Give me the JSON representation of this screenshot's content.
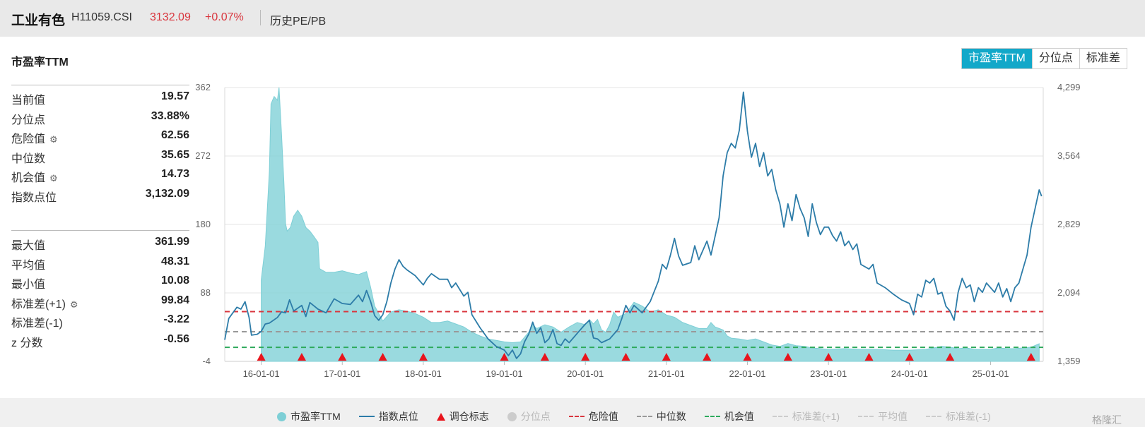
{
  "header": {
    "name": "工业有色",
    "code": "H11059.CSI",
    "price": "3132.09",
    "change": "+0.07%",
    "history_link": "历史PE/PB"
  },
  "panel_title": "市盈率TTM",
  "tabs": [
    {
      "label": "市盈率TTM",
      "active": true
    },
    {
      "label": "分位点",
      "active": false
    },
    {
      "label": "标准差",
      "active": false
    }
  ],
  "stats_top": [
    {
      "label": "当前值",
      "value": "19.57",
      "gear": false
    },
    {
      "label": "分位点",
      "value": "33.88%",
      "gear": false
    },
    {
      "label": "危险值",
      "value": "62.56",
      "gear": true
    },
    {
      "label": "中位数",
      "value": "35.65",
      "gear": false
    },
    {
      "label": "机会值",
      "value": "14.73",
      "gear": true
    },
    {
      "label": "指数点位",
      "value": "3,132.09",
      "gear": false
    }
  ],
  "stats_bottom": [
    {
      "label": "最大值",
      "value": "361.99",
      "gear": false
    },
    {
      "label": "平均值",
      "value": "48.31",
      "gear": false
    },
    {
      "label": "最小值",
      "value": "10.08",
      "gear": false
    },
    {
      "label": "标准差(+1)",
      "value": "99.84",
      "gear": true
    },
    {
      "label": "标准差(-1)",
      "value": "-3.22",
      "gear": false
    },
    {
      "label": "z 分数",
      "value": "-0.56",
      "gear": false
    }
  ],
  "gear_icon": "⚙",
  "colors": {
    "pe_fill": "#7ecfd6",
    "index_line": "#2d7ca8",
    "danger": "#d9363e",
    "median": "#999999",
    "opportunity": "#2eaa5c",
    "marker": "#e8141c",
    "tab_active": "#12a8c9"
  },
  "chart_data": {
    "type": "area",
    "x_ticks": [
      "16-01-01",
      "17-01-01",
      "18-01-01",
      "19-01-01",
      "20-01-01",
      "21-01-01",
      "22-01-01",
      "23-01-01",
      "24-01-01",
      "25-01-01"
    ],
    "x_range": [
      2015.55,
      2025.65
    ],
    "y_left": {
      "ticks": [
        "362",
        "272",
        "180",
        "88",
        "-4"
      ],
      "range": [
        -4,
        362
      ]
    },
    "y_right": {
      "ticks": [
        "4,299",
        "3,564",
        "2,829",
        "2,094",
        "1,359"
      ],
      "range": [
        1359,
        4299
      ]
    },
    "pe_series": {
      "name": "市盈率TTM",
      "points": [
        [
          2016.0,
          -4
        ],
        [
          2016.0,
          105
        ],
        [
          2016.05,
          150
        ],
        [
          2016.1,
          250
        ],
        [
          2016.12,
          340
        ],
        [
          2016.16,
          350
        ],
        [
          2016.2,
          345
        ],
        [
          2016.22,
          362
        ],
        [
          2016.25,
          300
        ],
        [
          2016.28,
          235
        ],
        [
          2016.3,
          180
        ],
        [
          2016.32,
          170
        ],
        [
          2016.36,
          175
        ],
        [
          2016.4,
          190
        ],
        [
          2016.45,
          198
        ],
        [
          2016.5,
          190
        ],
        [
          2016.55,
          175
        ],
        [
          2016.6,
          170
        ],
        [
          2016.65,
          163
        ],
        [
          2016.7,
          155
        ],
        [
          2016.72,
          120
        ],
        [
          2016.75,
          118
        ],
        [
          2016.8,
          115
        ],
        [
          2016.9,
          115
        ],
        [
          2017.0,
          117
        ],
        [
          2017.1,
          114
        ],
        [
          2017.2,
          112
        ],
        [
          2017.3,
          116
        ],
        [
          2017.35,
          95
        ],
        [
          2017.4,
          70
        ],
        [
          2017.5,
          50
        ],
        [
          2017.6,
          62
        ],
        [
          2017.7,
          65
        ],
        [
          2017.8,
          63
        ],
        [
          2017.9,
          60
        ],
        [
          2018.0,
          55
        ],
        [
          2018.1,
          48
        ],
        [
          2018.2,
          48
        ],
        [
          2018.3,
          50
        ],
        [
          2018.4,
          46
        ],
        [
          2018.5,
          42
        ],
        [
          2018.6,
          35
        ],
        [
          2018.7,
          30
        ],
        [
          2018.8,
          26
        ],
        [
          2018.9,
          24
        ],
        [
          2019.0,
          22
        ],
        [
          2019.1,
          21
        ],
        [
          2019.2,
          22
        ],
        [
          2019.3,
          35
        ],
        [
          2019.35,
          45
        ],
        [
          2019.4,
          40
        ],
        [
          2019.5,
          45
        ],
        [
          2019.6,
          42
        ],
        [
          2019.7,
          35
        ],
        [
          2019.8,
          42
        ],
        [
          2019.9,
          48
        ],
        [
          2020.0,
          45
        ],
        [
          2020.05,
          52
        ],
        [
          2020.1,
          46
        ],
        [
          2020.15,
          52
        ],
        [
          2020.2,
          38
        ],
        [
          2020.25,
          35
        ],
        [
          2020.3,
          45
        ],
        [
          2020.35,
          62
        ],
        [
          2020.4,
          55
        ],
        [
          2020.5,
          60
        ],
        [
          2020.6,
          75
        ],
        [
          2020.7,
          70
        ],
        [
          2020.8,
          62
        ],
        [
          2020.9,
          65
        ],
        [
          2021.0,
          58
        ],
        [
          2021.1,
          55
        ],
        [
          2021.2,
          48
        ],
        [
          2021.3,
          44
        ],
        [
          2021.4,
          40
        ],
        [
          2021.5,
          40
        ],
        [
          2021.55,
          48
        ],
        [
          2021.6,
          42
        ],
        [
          2021.7,
          38
        ],
        [
          2021.75,
          30
        ],
        [
          2021.8,
          27
        ],
        [
          2021.9,
          26
        ],
        [
          2022.0,
          24
        ],
        [
          2022.1,
          26
        ],
        [
          2022.2,
          22
        ],
        [
          2022.3,
          18
        ],
        [
          2022.4,
          16
        ],
        [
          2022.5,
          20
        ],
        [
          2022.6,
          17
        ],
        [
          2022.7,
          16
        ],
        [
          2022.8,
          14
        ],
        [
          2022.9,
          13
        ],
        [
          2023.0,
          12
        ],
        [
          2023.2,
          13
        ],
        [
          2023.4,
          12
        ],
        [
          2023.6,
          12
        ],
        [
          2023.8,
          11
        ],
        [
          2024.0,
          11
        ],
        [
          2024.2,
          12
        ],
        [
          2024.4,
          16
        ],
        [
          2024.5,
          15
        ],
        [
          2024.6,
          13
        ],
        [
          2024.7,
          14
        ],
        [
          2024.8,
          12
        ],
        [
          2024.9,
          12
        ],
        [
          2025.0,
          12
        ],
        [
          2025.1,
          14
        ],
        [
          2025.2,
          13
        ],
        [
          2025.3,
          13
        ],
        [
          2025.4,
          14
        ],
        [
          2025.5,
          15
        ],
        [
          2025.6,
          19.57
        ]
      ]
    },
    "index_series": {
      "name": "指数点位",
      "points": [
        [
          2015.55,
          1590
        ],
        [
          2015.6,
          1820
        ],
        [
          2015.7,
          1940
        ],
        [
          2015.75,
          1920
        ],
        [
          2015.8,
          2000
        ],
        [
          2015.85,
          1830
        ],
        [
          2015.88,
          1640
        ],
        [
          2015.95,
          1650
        ],
        [
          2016.0,
          1680
        ],
        [
          2016.05,
          1760
        ],
        [
          2016.1,
          1770
        ],
        [
          2016.2,
          1830
        ],
        [
          2016.25,
          1890
        ],
        [
          2016.3,
          1880
        ],
        [
          2016.35,
          2020
        ],
        [
          2016.4,
          1900
        ],
        [
          2016.5,
          1960
        ],
        [
          2016.55,
          1840
        ],
        [
          2016.6,
          1990
        ],
        [
          2016.7,
          1920
        ],
        [
          2016.8,
          1880
        ],
        [
          2016.9,
          2030
        ],
        [
          2017.0,
          1980
        ],
        [
          2017.1,
          1970
        ],
        [
          2017.2,
          2070
        ],
        [
          2017.25,
          2000
        ],
        [
          2017.3,
          2120
        ],
        [
          2017.35,
          2000
        ],
        [
          2017.4,
          1850
        ],
        [
          2017.45,
          1800
        ],
        [
          2017.5,
          1860
        ],
        [
          2017.55,
          2000
        ],
        [
          2017.6,
          2200
        ],
        [
          2017.65,
          2350
        ],
        [
          2017.7,
          2450
        ],
        [
          2017.75,
          2380
        ],
        [
          2017.8,
          2340
        ],
        [
          2017.9,
          2280
        ],
        [
          2018.0,
          2180
        ],
        [
          2018.05,
          2250
        ],
        [
          2018.1,
          2300
        ],
        [
          2018.2,
          2240
        ],
        [
          2018.3,
          2240
        ],
        [
          2018.35,
          2150
        ],
        [
          2018.4,
          2200
        ],
        [
          2018.5,
          2060
        ],
        [
          2018.55,
          2100
        ],
        [
          2018.6,
          1860
        ],
        [
          2018.7,
          1720
        ],
        [
          2018.8,
          1600
        ],
        [
          2018.9,
          1520
        ],
        [
          2019.0,
          1480
        ],
        [
          2019.05,
          1420
        ],
        [
          2019.1,
          1480
        ],
        [
          2019.15,
          1390
        ],
        [
          2019.2,
          1440
        ],
        [
          2019.25,
          1570
        ],
        [
          2019.3,
          1650
        ],
        [
          2019.35,
          1780
        ],
        [
          2019.4,
          1660
        ],
        [
          2019.45,
          1720
        ],
        [
          2019.5,
          1560
        ],
        [
          2019.55,
          1600
        ],
        [
          2019.6,
          1700
        ],
        [
          2019.65,
          1550
        ],
        [
          2019.7,
          1530
        ],
        [
          2019.75,
          1600
        ],
        [
          2019.8,
          1560
        ],
        [
          2019.9,
          1660
        ],
        [
          2020.0,
          1760
        ],
        [
          2020.05,
          1800
        ],
        [
          2020.1,
          1610
        ],
        [
          2020.15,
          1600
        ],
        [
          2020.2,
          1560
        ],
        [
          2020.3,
          1600
        ],
        [
          2020.4,
          1700
        ],
        [
          2020.45,
          1820
        ],
        [
          2020.5,
          1960
        ],
        [
          2020.55,
          1880
        ],
        [
          2020.6,
          1960
        ],
        [
          2020.7,
          1880
        ],
        [
          2020.8,
          2000
        ],
        [
          2020.9,
          2220
        ],
        [
          2020.95,
          2400
        ],
        [
          2021.0,
          2350
        ],
        [
          2021.05,
          2500
        ],
        [
          2021.1,
          2680
        ],
        [
          2021.15,
          2490
        ],
        [
          2021.2,
          2390
        ],
        [
          2021.3,
          2420
        ],
        [
          2021.35,
          2600
        ],
        [
          2021.4,
          2450
        ],
        [
          2021.5,
          2650
        ],
        [
          2021.55,
          2500
        ],
        [
          2021.6,
          2700
        ],
        [
          2021.65,
          2900
        ],
        [
          2021.7,
          3350
        ],
        [
          2021.75,
          3600
        ],
        [
          2021.8,
          3700
        ],
        [
          2021.85,
          3650
        ],
        [
          2021.9,
          3840
        ],
        [
          2021.95,
          4250
        ],
        [
          2022.0,
          3830
        ],
        [
          2022.05,
          3550
        ],
        [
          2022.1,
          3700
        ],
        [
          2022.15,
          3450
        ],
        [
          2022.2,
          3600
        ],
        [
          2022.25,
          3350
        ],
        [
          2022.3,
          3420
        ],
        [
          2022.35,
          3200
        ],
        [
          2022.4,
          3050
        ],
        [
          2022.45,
          2800
        ],
        [
          2022.5,
          3050
        ],
        [
          2022.55,
          2870
        ],
        [
          2022.6,
          3150
        ],
        [
          2022.65,
          3000
        ],
        [
          2022.7,
          2900
        ],
        [
          2022.75,
          2700
        ],
        [
          2022.8,
          3050
        ],
        [
          2022.85,
          2850
        ],
        [
          2022.9,
          2720
        ],
        [
          2022.95,
          2800
        ],
        [
          2023.0,
          2800
        ],
        [
          2023.05,
          2710
        ],
        [
          2023.1,
          2650
        ],
        [
          2023.15,
          2750
        ],
        [
          2023.2,
          2600
        ],
        [
          2023.25,
          2650
        ],
        [
          2023.3,
          2560
        ],
        [
          2023.35,
          2620
        ],
        [
          2023.4,
          2400
        ],
        [
          2023.5,
          2350
        ],
        [
          2023.55,
          2400
        ],
        [
          2023.6,
          2200
        ],
        [
          2023.7,
          2150
        ],
        [
          2023.8,
          2080
        ],
        [
          2023.9,
          2020
        ],
        [
          2024.0,
          1980
        ],
        [
          2024.05,
          1860
        ],
        [
          2024.1,
          2080
        ],
        [
          2024.15,
          2050
        ],
        [
          2024.2,
          2230
        ],
        [
          2024.25,
          2200
        ],
        [
          2024.3,
          2250
        ],
        [
          2024.35,
          2080
        ],
        [
          2024.4,
          2100
        ],
        [
          2024.45,
          1950
        ],
        [
          2024.5,
          1900
        ],
        [
          2024.55,
          1800
        ],
        [
          2024.6,
          2100
        ],
        [
          2024.65,
          2250
        ],
        [
          2024.7,
          2150
        ],
        [
          2024.75,
          2180
        ],
        [
          2024.8,
          2000
        ],
        [
          2024.85,
          2150
        ],
        [
          2024.9,
          2100
        ],
        [
          2024.95,
          2200
        ],
        [
          2025.0,
          2150
        ],
        [
          2025.05,
          2100
        ],
        [
          2025.1,
          2200
        ],
        [
          2025.15,
          2050
        ],
        [
          2025.2,
          2140
        ],
        [
          2025.25,
          2000
        ],
        [
          2025.3,
          2150
        ],
        [
          2025.35,
          2200
        ],
        [
          2025.4,
          2350
        ],
        [
          2025.45,
          2500
        ],
        [
          2025.5,
          2800
        ],
        [
          2025.55,
          3000
        ],
        [
          2025.6,
          3200
        ],
        [
          2025.63,
          3132.09
        ]
      ]
    },
    "reference_lines": [
      {
        "name": "危险值",
        "value": 62.56,
        "style": "dashed",
        "color": "#d9363e"
      },
      {
        "name": "中位数",
        "value": 35.65,
        "style": "dashed",
        "color": "#999999"
      },
      {
        "name": "机会值",
        "value": 14.73,
        "style": "dashed",
        "color": "#2eaa5c"
      }
    ],
    "rebalance_markers": [
      2016.0,
      2016.5,
      2017.0,
      2017.5,
      2018.0,
      2019.0,
      2019.5,
      2020.0,
      2020.5,
      2021.0,
      2021.5,
      2022.0,
      2022.5,
      2023.0,
      2023.5,
      2024.0,
      2024.5,
      2025.5
    ],
    "legend": [
      {
        "label": "市盈率TTM",
        "kind": "dot",
        "color": "#7ecfd6",
        "active": true
      },
      {
        "label": "指数点位",
        "kind": "line",
        "color": "#2d7ca8",
        "active": true
      },
      {
        "label": "调仓标志",
        "kind": "triangle",
        "color": "#e8141c",
        "active": true
      },
      {
        "label": "分位点",
        "kind": "dot",
        "color": "#cccccc",
        "active": false
      },
      {
        "label": "危险值",
        "kind": "dash",
        "color": "#d9363e",
        "active": true
      },
      {
        "label": "中位数",
        "kind": "dash",
        "color": "#999999",
        "active": true
      },
      {
        "label": "机会值",
        "kind": "dash",
        "color": "#2eaa5c",
        "active": true
      },
      {
        "label": "标准差(+1)",
        "kind": "dash",
        "color": "#cccccc",
        "active": false
      },
      {
        "label": "平均值",
        "kind": "dash",
        "color": "#cccccc",
        "active": false
      },
      {
        "label": "标准差(-1)",
        "kind": "dash",
        "color": "#cccccc",
        "active": false
      }
    ]
  },
  "watermark": "格隆汇"
}
